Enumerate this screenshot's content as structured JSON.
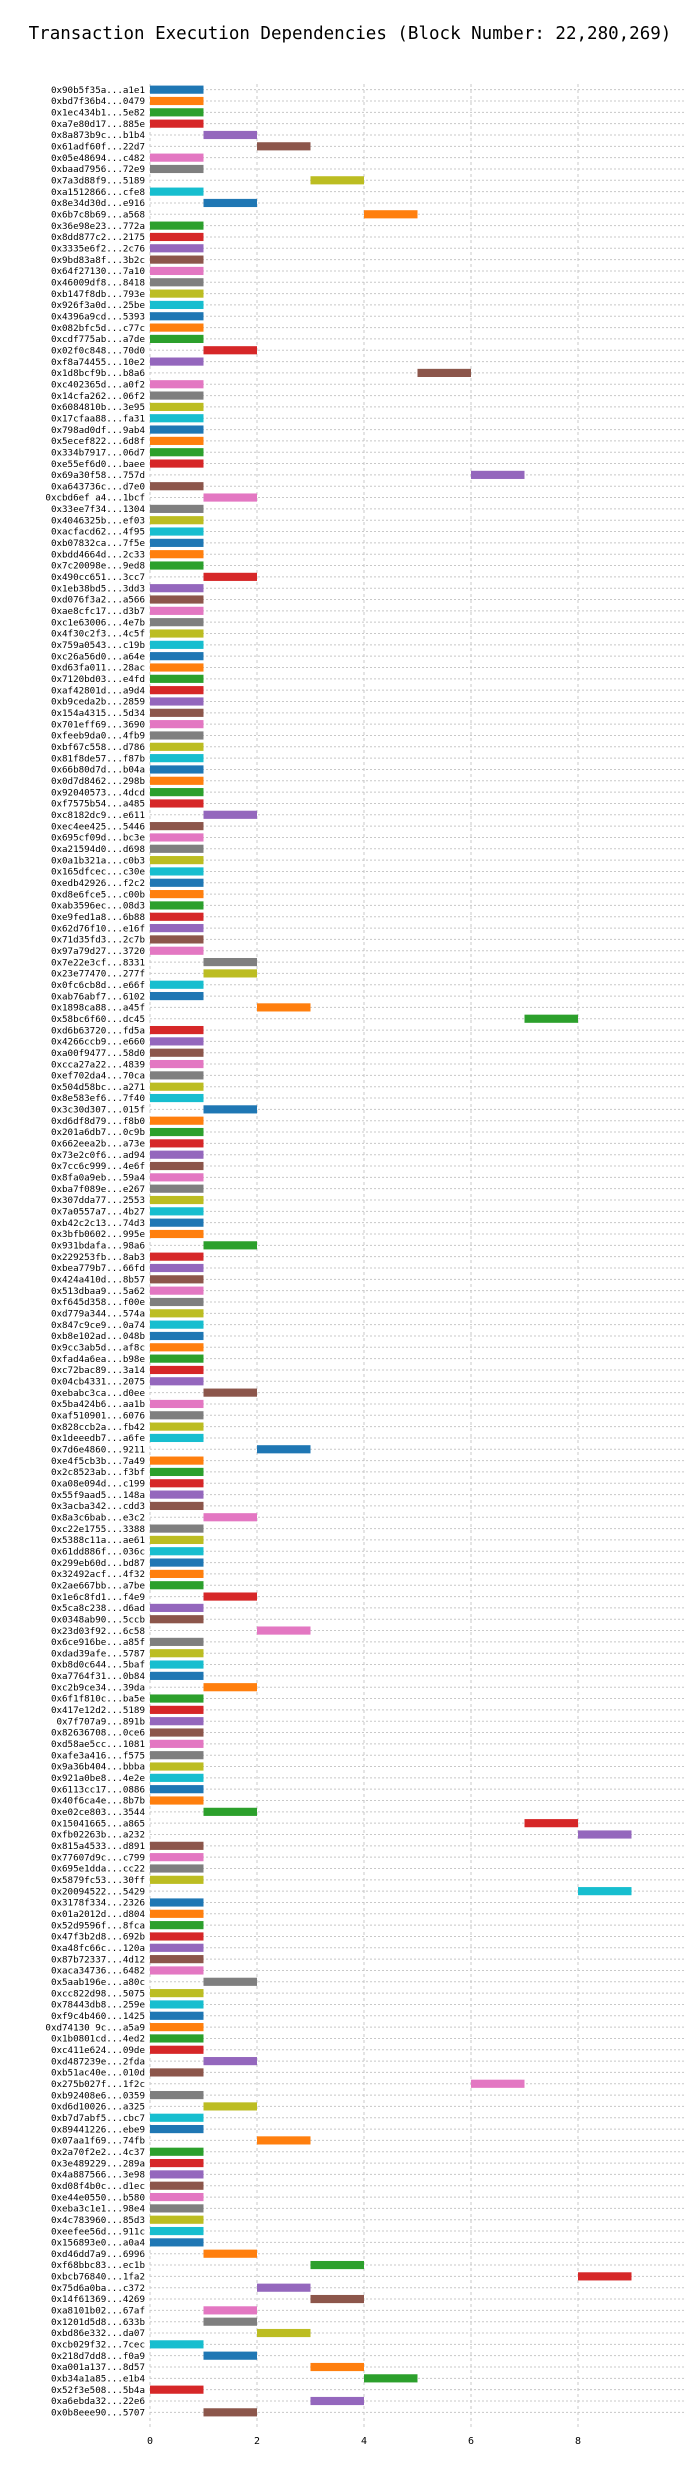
{
  "chart_data": {
    "type": "bar",
    "orientation": "horizontal-gantt",
    "title": "Transaction Execution Dependencies (Block Number: 22,280,269)",
    "xlabel": "",
    "ylabel": "",
    "xlim": [
      0,
      10
    ],
    "xticks": [
      0,
      2,
      4,
      6,
      8
    ],
    "grid": true,
    "legend": "none",
    "palette": [
      "#1f77b4",
      "#ff7f0e",
      "#2ca02c",
      "#d62728",
      "#9467bd",
      "#8c564b",
      "#e377c2",
      "#7f7f7f",
      "#bcbd22",
      "#17becf"
    ],
    "transactions": [
      {
        "hash": "0x90b5f35a...a1e1",
        "start": 0,
        "end": 1
      },
      {
        "hash": "0xbd7f36b4...0479",
        "start": 0,
        "end": 1
      },
      {
        "hash": "0x1ec434b1...5e82",
        "start": 0,
        "end": 1
      },
      {
        "hash": "0xa7e80d17...885e",
        "start": 0,
        "end": 1
      },
      {
        "hash": "0x8a873b9c...b1b4",
        "start": 1,
        "end": 2
      },
      {
        "hash": "0x61adf60f...22d7",
        "start": 2,
        "end": 3
      },
      {
        "hash": "0x05e48694...c482",
        "start": 0,
        "end": 1
      },
      {
        "hash": "0xbaad7956...72e9",
        "start": 0,
        "end": 1
      },
      {
        "hash": "0x7a3d88f9...5189",
        "start": 3,
        "end": 4
      },
      {
        "hash": "0xa1512866...cfe8",
        "start": 0,
        "end": 1
      },
      {
        "hash": "0x8e34d30d...e916",
        "start": 1,
        "end": 2
      },
      {
        "hash": "0x6b7c8b69...a568",
        "start": 4,
        "end": 5
      },
      {
        "hash": "0x36e98e23...772a",
        "start": 0,
        "end": 1
      },
      {
        "hash": "0x8dd877c2...2175",
        "start": 0,
        "end": 1
      },
      {
        "hash": "0x3335e6f2...2c76",
        "start": 0,
        "end": 1
      },
      {
        "hash": "0x9bd83a8f...3b2c",
        "start": 0,
        "end": 1
      },
      {
        "hash": "0x64f27130...7a10",
        "start": 0,
        "end": 1
      },
      {
        "hash": "0x46009df8...8418",
        "start": 0,
        "end": 1
      },
      {
        "hash": "0xb147f8db...793e",
        "start": 0,
        "end": 1
      },
      {
        "hash": "0x926f3a0d...25be",
        "start": 0,
        "end": 1
      },
      {
        "hash": "0x4396a9cd...5393",
        "start": 0,
        "end": 1
      },
      {
        "hash": "0x082bfc5d...c77c",
        "start": 0,
        "end": 1
      },
      {
        "hash": "0xcdf775ab...a7de",
        "start": 0,
        "end": 1
      },
      {
        "hash": "0x02f0c848...70d0",
        "start": 1,
        "end": 2
      },
      {
        "hash": "0xf8a74455...10e2",
        "start": 0,
        "end": 1
      },
      {
        "hash": "0x1d8bcf9b...b8a6",
        "start": 5,
        "end": 6
      },
      {
        "hash": "0xc402365d...a0f2",
        "start": 0,
        "end": 1
      },
      {
        "hash": "0x14cfa262...06f2",
        "start": 0,
        "end": 1
      },
      {
        "hash": "0x6084810b...3e95",
        "start": 0,
        "end": 1
      },
      {
        "hash": "0x17cfaa88...fa31",
        "start": 0,
        "end": 1
      },
      {
        "hash": "0x798ad0df...9ab4",
        "start": 0,
        "end": 1
      },
      {
        "hash": "0x5ecef822...6d8f",
        "start": 0,
        "end": 1
      },
      {
        "hash": "0x334b7917...06d7",
        "start": 0,
        "end": 1
      },
      {
        "hash": "0xe55ef6d0...baee",
        "start": 0,
        "end": 1
      },
      {
        "hash": "0x69a30f58...757d",
        "start": 6,
        "end": 7
      },
      {
        "hash": "0xa643736c...d7e0",
        "start": 0,
        "end": 1
      },
      {
        "hash": "0xcbd6ef a4...1bcf",
        "start": 1,
        "end": 2
      },
      {
        "hash": "0x33ee7f34...1304",
        "start": 0,
        "end": 1
      },
      {
        "hash": "0x4046325b...ef03",
        "start": 0,
        "end": 1
      },
      {
        "hash": "0xacfacd62...4f95",
        "start": 0,
        "end": 1
      },
      {
        "hash": "0xb07832ca...7f5e",
        "start": 0,
        "end": 1
      },
      {
        "hash": "0xbdd4664d...2c33",
        "start": 0,
        "end": 1
      },
      {
        "hash": "0x7c20098e...9ed8",
        "start": 0,
        "end": 1
      },
      {
        "hash": "0x490cc651...3cc7",
        "start": 1,
        "end": 2
      },
      {
        "hash": "0x1eb38bd5...3dd3",
        "start": 0,
        "end": 1
      },
      {
        "hash": "0xd076f3a2...a566",
        "start": 0,
        "end": 1
      },
      {
        "hash": "0xae8cfc17...d3b7",
        "start": 0,
        "end": 1
      },
      {
        "hash": "0xc1e63006...4e7b",
        "start": 0,
        "end": 1
      },
      {
        "hash": "0x4f30c2f3...4c5f",
        "start": 0,
        "end": 1
      },
      {
        "hash": "0x759a0543...c19b",
        "start": 0,
        "end": 1
      },
      {
        "hash": "0xc26a56d0...a64e",
        "start": 0,
        "end": 1
      },
      {
        "hash": "0xd63fa011...28ac",
        "start": 0,
        "end": 1
      },
      {
        "hash": "0x7120bd03...e4fd",
        "start": 0,
        "end": 1
      },
      {
        "hash": "0xaf42801d...a9d4",
        "start": 0,
        "end": 1
      },
      {
        "hash": "0xb9ceda2b...2859",
        "start": 0,
        "end": 1
      },
      {
        "hash": "0x154a4315...5d34",
        "start": 0,
        "end": 1
      },
      {
        "hash": "0x701eff69...3690",
        "start": 0,
        "end": 1
      },
      {
        "hash": "0xfeeb9da0...4fb9",
        "start": 0,
        "end": 1
      },
      {
        "hash": "0xbf67c558...d786",
        "start": 0,
        "end": 1
      },
      {
        "hash": "0x81f8de57...f87b",
        "start": 0,
        "end": 1
      },
      {
        "hash": "0x66b80d7d...b04a",
        "start": 0,
        "end": 1
      },
      {
        "hash": "0x0d7d8462...298b",
        "start": 0,
        "end": 1
      },
      {
        "hash": "0x92040573...4dcd",
        "start": 0,
        "end": 1
      },
      {
        "hash": "0xf7575b54...a485",
        "start": 0,
        "end": 1
      },
      {
        "hash": "0xc8182dc9...e611",
        "start": 1,
        "end": 2
      },
      {
        "hash": "0xec4ee425...5446",
        "start": 0,
        "end": 1
      },
      {
        "hash": "0x695cf09d...bc3e",
        "start": 0,
        "end": 1
      },
      {
        "hash": "0xa21594d0...d698",
        "start": 0,
        "end": 1
      },
      {
        "hash": "0x0a1b321a...c0b3",
        "start": 0,
        "end": 1
      },
      {
        "hash": "0x165dfcec...c30e",
        "start": 0,
        "end": 1
      },
      {
        "hash": "0xedb42926...f2c2",
        "start": 0,
        "end": 1
      },
      {
        "hash": "0xd8e6fce5...c00b",
        "start": 0,
        "end": 1
      },
      {
        "hash": "0xab3596ec...08d3",
        "start": 0,
        "end": 1
      },
      {
        "hash": "0xe9fed1a8...6b88",
        "start": 0,
        "end": 1
      },
      {
        "hash": "0x62d76f10...e16f",
        "start": 0,
        "end": 1
      },
      {
        "hash": "0x71d35fd3...2c7b",
        "start": 0,
        "end": 1
      },
      {
        "hash": "0x97a79d27...3720",
        "start": 0,
        "end": 1
      },
      {
        "hash": "0x7e22e3cf...8331",
        "start": 1,
        "end": 2
      },
      {
        "hash": "0x23e77470...277f",
        "start": 1,
        "end": 2
      },
      {
        "hash": "0x0fc6cb8d...e66f",
        "start": 0,
        "end": 1
      },
      {
        "hash": "0xab76abf7...6102",
        "start": 0,
        "end": 1
      },
      {
        "hash": "0x1898ca88...a45f",
        "start": 2,
        "end": 3
      },
      {
        "hash": "0x58bc6f60...dc45",
        "start": 7,
        "end": 8
      },
      {
        "hash": "0xd6b63720...fd5a",
        "start": 0,
        "end": 1
      },
      {
        "hash": "0x4266ccb9...e660",
        "start": 0,
        "end": 1
      },
      {
        "hash": "0xa00f9477...58d0",
        "start": 0,
        "end": 1
      },
      {
        "hash": "0xcca27a22...4839",
        "start": 0,
        "end": 1
      },
      {
        "hash": "0xef702da4...70ca",
        "start": 0,
        "end": 1
      },
      {
        "hash": "0x504d58bc...a271",
        "start": 0,
        "end": 1
      },
      {
        "hash": "0x8e583ef6...7f40",
        "start": 0,
        "end": 1
      },
      {
        "hash": "0x3c30d307...015f",
        "start": 1,
        "end": 2
      },
      {
        "hash": "0xd6df8d79...f8b0",
        "start": 0,
        "end": 1
      },
      {
        "hash": "0x201a6db7...0c9b",
        "start": 0,
        "end": 1
      },
      {
        "hash": "0x662eea2b...a73e",
        "start": 0,
        "end": 1
      },
      {
        "hash": "0x73e2c0f6...ad94",
        "start": 0,
        "end": 1
      },
      {
        "hash": "0x7cc6c999...4e6f",
        "start": 0,
        "end": 1
      },
      {
        "hash": "0x8fa0a9eb...59a4",
        "start": 0,
        "end": 1
      },
      {
        "hash": "0xba7f089e...e267",
        "start": 0,
        "end": 1
      },
      {
        "hash": "0x307dda77...2553",
        "start": 0,
        "end": 1
      },
      {
        "hash": "0x7a0557a7...4b27",
        "start": 0,
        "end": 1
      },
      {
        "hash": "0xb42c2c13...74d3",
        "start": 0,
        "end": 1
      },
      {
        "hash": "0x3bfb0602...995e",
        "start": 0,
        "end": 1
      },
      {
        "hash": "0x931bdafa...98a6",
        "start": 1,
        "end": 2
      },
      {
        "hash": "0x229253fb...8ab3",
        "start": 0,
        "end": 1
      },
      {
        "hash": "0xbea779b7...66fd",
        "start": 0,
        "end": 1
      },
      {
        "hash": "0x424a410d...8b57",
        "start": 0,
        "end": 1
      },
      {
        "hash": "0x513dbaa9...5a62",
        "start": 0,
        "end": 1
      },
      {
        "hash": "0xf645d358...f00e",
        "start": 0,
        "end": 1
      },
      {
        "hash": "0xd779a344...574a",
        "start": 0,
        "end": 1
      },
      {
        "hash": "0x847c9ce9...0a74",
        "start": 0,
        "end": 1
      },
      {
        "hash": "0xb8e102ad...048b",
        "start": 0,
        "end": 1
      },
      {
        "hash": "0x9cc3ab5d...af8c",
        "start": 0,
        "end": 1
      },
      {
        "hash": "0xfad4a6ea...b98e",
        "start": 0,
        "end": 1
      },
      {
        "hash": "0xc72bac89...3a14",
        "start": 0,
        "end": 1
      },
      {
        "hash": "0x04cb4331...2075",
        "start": 0,
        "end": 1
      },
      {
        "hash": "0xebabc3ca...d0ee",
        "start": 1,
        "end": 2
      },
      {
        "hash": "0x5ba424b6...aa1b",
        "start": 0,
        "end": 1
      },
      {
        "hash": "0xaf510901...6076",
        "start": 0,
        "end": 1
      },
      {
        "hash": "0x828ccb2a...fb42",
        "start": 0,
        "end": 1
      },
      {
        "hash": "0x1deeedb7...a6fe",
        "start": 0,
        "end": 1
      },
      {
        "hash": "0x7d6e4860...9211",
        "start": 2,
        "end": 3
      },
      {
        "hash": "0xe4f5cb3b...7a49",
        "start": 0,
        "end": 1
      },
      {
        "hash": "0x2c8523ab...f3bf",
        "start": 0,
        "end": 1
      },
      {
        "hash": "0xa08e094d...c199",
        "start": 0,
        "end": 1
      },
      {
        "hash": "0x55f9aad5...148a",
        "start": 0,
        "end": 1
      },
      {
        "hash": "0x3acba342...cdd3",
        "start": 0,
        "end": 1
      },
      {
        "hash": "0x8a3c6bab...e3c2",
        "start": 1,
        "end": 2
      },
      {
        "hash": "0xc22e1755...3388",
        "start": 0,
        "end": 1
      },
      {
        "hash": "0x5388c11a...ae61",
        "start": 0,
        "end": 1
      },
      {
        "hash": "0x61dd886f...036c",
        "start": 0,
        "end": 1
      },
      {
        "hash": "0x299eb60d...bd87",
        "start": 0,
        "end": 1
      },
      {
        "hash": "0x32492acf...4f32",
        "start": 0,
        "end": 1
      },
      {
        "hash": "0x2ae667bb...a7be",
        "start": 0,
        "end": 1
      },
      {
        "hash": "0x1e6c8fd1...f4e9",
        "start": 1,
        "end": 2
      },
      {
        "hash": "0x5ca8c238...d6ad",
        "start": 0,
        "end": 1
      },
      {
        "hash": "0x0348ab90...5ccb",
        "start": 0,
        "end": 1
      },
      {
        "hash": "0x23d03f92...6c58",
        "start": 2,
        "end": 3
      },
      {
        "hash": "0x6ce916be...a85f",
        "start": 0,
        "end": 1
      },
      {
        "hash": "0xdad39afe...5787",
        "start": 0,
        "end": 1
      },
      {
        "hash": "0xb8d0c644...5baf",
        "start": 0,
        "end": 1
      },
      {
        "hash": "0xa7764f31...0b84",
        "start": 0,
        "end": 1
      },
      {
        "hash": "0xc2b9ce34...39da",
        "start": 1,
        "end": 2
      },
      {
        "hash": "0x6f1f810c...ba5e",
        "start": 0,
        "end": 1
      },
      {
        "hash": "0x417e12d2...5189",
        "start": 0,
        "end": 1
      },
      {
        "hash": "0x7f707a9...891b",
        "start": 0,
        "end": 1
      },
      {
        "hash": "0x82636708...0ce6",
        "start": 0,
        "end": 1
      },
      {
        "hash": "0xd58ae5cc...1081",
        "start": 0,
        "end": 1
      },
      {
        "hash": "0xafe3a416...f575",
        "start": 0,
        "end": 1
      },
      {
        "hash": "0x9a36b404...bbba",
        "start": 0,
        "end": 1
      },
      {
        "hash": "0x921a0be8...4e2e",
        "start": 0,
        "end": 1
      },
      {
        "hash": "0x6113cc17...0886",
        "start": 0,
        "end": 1
      },
      {
        "hash": "0x40f6ca4e...8b7b",
        "start": 0,
        "end": 1
      },
      {
        "hash": "0xe02ce803...3544",
        "start": 1,
        "end": 2
      },
      {
        "hash": "0x15041665...a865",
        "start": 7,
        "end": 8
      },
      {
        "hash": "0xfb02263b...a232",
        "start": 8,
        "end": 9
      },
      {
        "hash": "0x815a4533...d891",
        "start": 0,
        "end": 1
      },
      {
        "hash": "0x77607d9c...c799",
        "start": 0,
        "end": 1
      },
      {
        "hash": "0x695e1dda...cc22",
        "start": 0,
        "end": 1
      },
      {
        "hash": "0x5879fc53...30ff",
        "start": 0,
        "end": 1
      },
      {
        "hash": "0x20094522...5429",
        "start": 8,
        "end": 9
      },
      {
        "hash": "0x3178f334...2326",
        "start": 0,
        "end": 1
      },
      {
        "hash": "0x01a2012d...d804",
        "start": 0,
        "end": 1
      },
      {
        "hash": "0x52d9596f...8fca",
        "start": 0,
        "end": 1
      },
      {
        "hash": "0x47f3b2d8...692b",
        "start": 0,
        "end": 1
      },
      {
        "hash": "0xa48fc66c...120a",
        "start": 0,
        "end": 1
      },
      {
        "hash": "0x87b72337...4d12",
        "start": 0,
        "end": 1
      },
      {
        "hash": "0xaca34736...6482",
        "start": 0,
        "end": 1
      },
      {
        "hash": "0x5aab196e...a80c",
        "start": 1,
        "end": 2
      },
      {
        "hash": "0xcc822d98...5075",
        "start": 0,
        "end": 1
      },
      {
        "hash": "0x78443db8...259e",
        "start": 0,
        "end": 1
      },
      {
        "hash": "0xf9c4b460...1425",
        "start": 0,
        "end": 1
      },
      {
        "hash": "0xd74130 9c...a5a9",
        "start": 0,
        "end": 1
      },
      {
        "hash": "0x1b0801cd...4ed2",
        "start": 0,
        "end": 1
      },
      {
        "hash": "0xc411e624...09de",
        "start": 0,
        "end": 1
      },
      {
        "hash": "0xd487239e...2fda",
        "start": 1,
        "end": 2
      },
      {
        "hash": "0xb51ac40e...010d",
        "start": 0,
        "end": 1
      },
      {
        "hash": "0x275b027f...1f2c",
        "start": 6,
        "end": 7
      },
      {
        "hash": "0xb92408e6...0359",
        "start": 0,
        "end": 1
      },
      {
        "hash": "0xd6d10026...a325",
        "start": 1,
        "end": 2
      },
      {
        "hash": "0xb7d7abf5...cbc7",
        "start": 0,
        "end": 1
      },
      {
        "hash": "0x89441226...ebe9",
        "start": 0,
        "end": 1
      },
      {
        "hash": "0x07aa1f69...74fb",
        "start": 2,
        "end": 3
      },
      {
        "hash": "0x2a70f2e2...4c37",
        "start": 0,
        "end": 1
      },
      {
        "hash": "0x3e489229...289a",
        "start": 0,
        "end": 1
      },
      {
        "hash": "0x4a887566...3e98",
        "start": 0,
        "end": 1
      },
      {
        "hash": "0xd08f4b0c...d1ec",
        "start": 0,
        "end": 1
      },
      {
        "hash": "0xe44e0550...b580",
        "start": 0,
        "end": 1
      },
      {
        "hash": "0xeba3c1e1...98e4",
        "start": 0,
        "end": 1
      },
      {
        "hash": "0x4c783960...85d3",
        "start": 0,
        "end": 1
      },
      {
        "hash": "0xeefee56d...911c",
        "start": 0,
        "end": 1
      },
      {
        "hash": "0x156893e0...a0a4",
        "start": 0,
        "end": 1
      },
      {
        "hash": "0xd46dd7a9...6996",
        "start": 1,
        "end": 2
      },
      {
        "hash": "0xf68bbc83...ec1b",
        "start": 3,
        "end": 4
      },
      {
        "hash": "0xbcb76840...1fa2",
        "start": 8,
        "end": 9
      },
      {
        "hash": "0x75d6a0ba...c372",
        "start": 2,
        "end": 3
      },
      {
        "hash": "0x14f61369...4269",
        "start": 3,
        "end": 4
      },
      {
        "hash": "0xa8101b02...67af",
        "start": 1,
        "end": 2
      },
      {
        "hash": "0x1201d5d8...633b",
        "start": 1,
        "end": 2
      },
      {
        "hash": "0xbd86e332...da07",
        "start": 2,
        "end": 3
      },
      {
        "hash": "0xcb029f32...7cec",
        "start": 0,
        "end": 1
      },
      {
        "hash": "0x218d7dd8...f0a9",
        "start": 1,
        "end": 2
      },
      {
        "hash": "0xa001a137...8d57",
        "start": 3,
        "end": 4
      },
      {
        "hash": "0xb34a1a85...e1b4",
        "start": 4,
        "end": 5
      },
      {
        "hash": "0x52f3e508...5b4a",
        "start": 0,
        "end": 1
      },
      {
        "hash": "0xa6ebda32...22e6",
        "start": 3,
        "end": 4
      },
      {
        "hash": "0x0b8eee90...5707",
        "start": 1,
        "end": 2
      }
    ]
  }
}
